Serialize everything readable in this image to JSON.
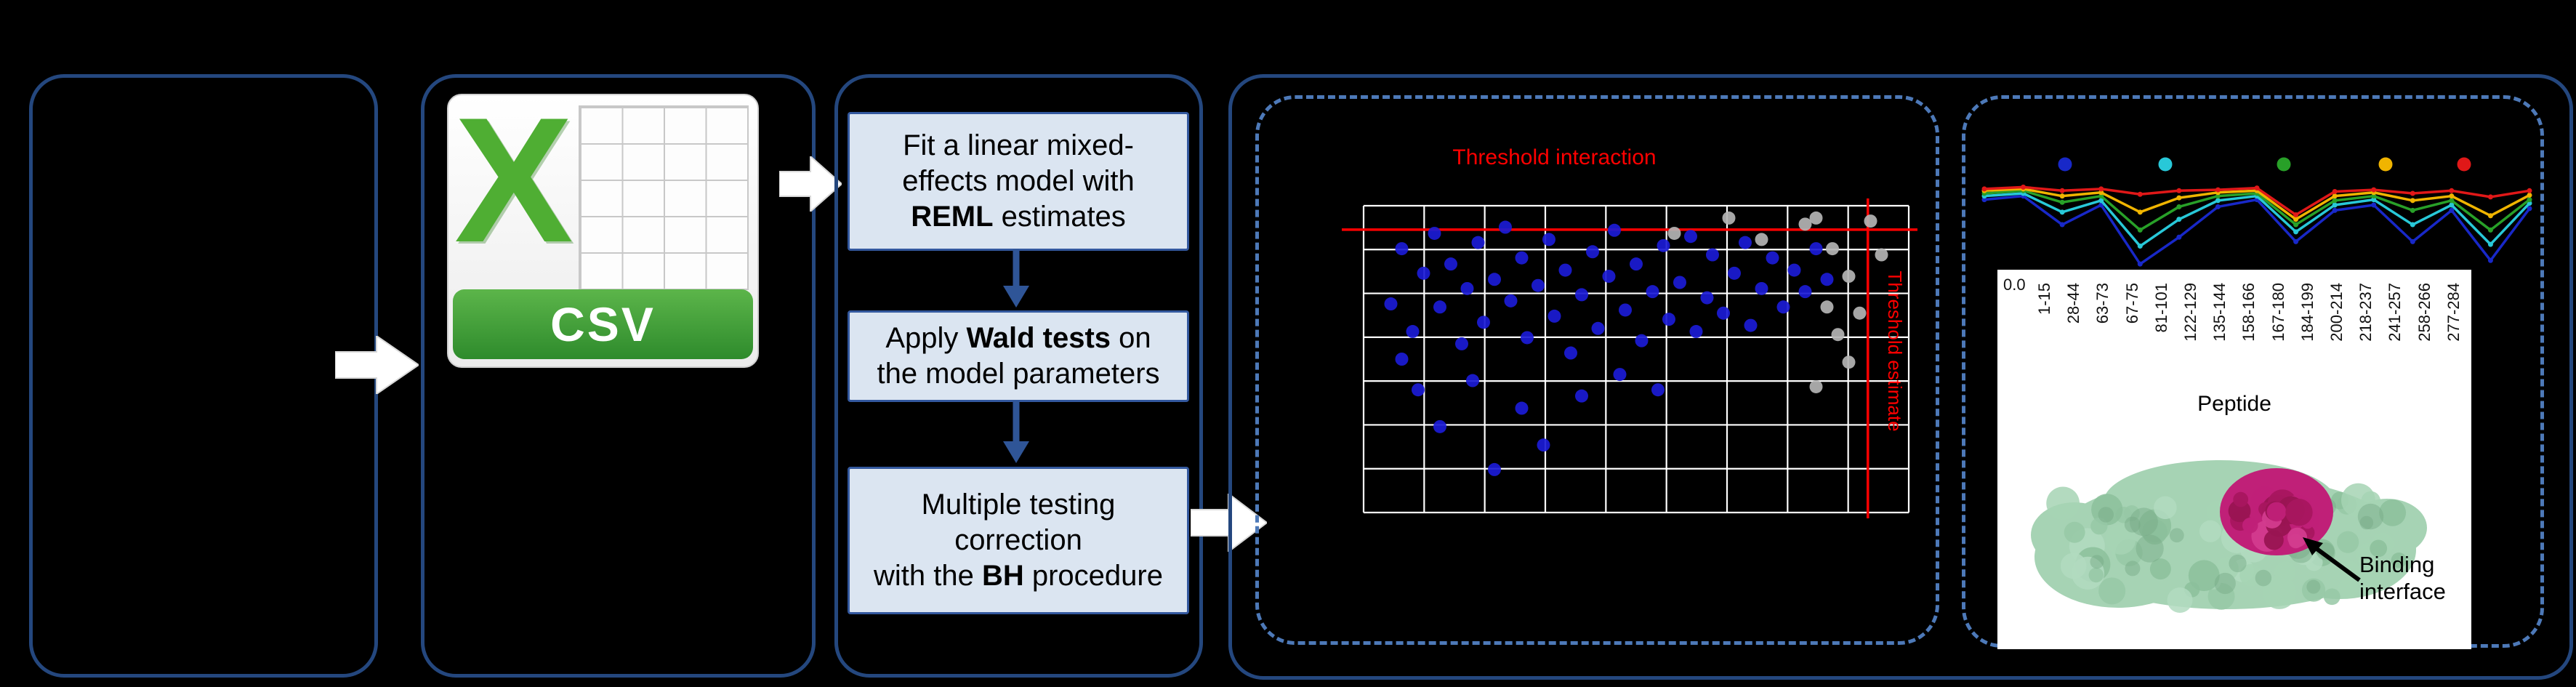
{
  "diagram": {
    "csv_icon": {
      "letter": "X",
      "banner_label": "CSV"
    },
    "method_steps": [
      {
        "lines": [
          [
            {
              "t": "Fit a linear mixed-"
            }
          ],
          [
            {
              "t": "effects model with"
            }
          ],
          [
            {
              "t": "REML",
              "b": true
            },
            {
              "t": " estimates"
            }
          ]
        ]
      },
      {
        "lines": [
          [
            {
              "t": "Apply "
            },
            {
              "t": "Wald tests",
              "b": true
            },
            {
              "t": " on"
            }
          ],
          [
            {
              "t": "the model parameters"
            }
          ]
        ]
      },
      {
        "lines": [
          [
            {
              "t": "Multiple testing"
            }
          ],
          [
            {
              "t": "correction"
            }
          ],
          [
            {
              "t": "with the "
            },
            {
              "t": "BH",
              "b": true
            },
            {
              "t": " procedure"
            }
          ]
        ]
      }
    ],
    "protein_caption": [
      "Binding",
      "interface"
    ],
    "colors": {
      "section_border": "#24477e",
      "dashed_border": "#4d79b8",
      "step_fill": "#dbe5f1",
      "step_border": "#33589e",
      "arrow_fill": "#ffffff",
      "down_arrow": "#2f5597",
      "csv_green": "#4fae33"
    }
  },
  "chart_data": [
    {
      "type": "scatter",
      "title": "Threshold interaction",
      "side_label": "Threshold estimate",
      "accent": "#ff0000",
      "grid_color": "#ffffff",
      "grid_cols": 9,
      "grid_rows": 7,
      "threshold_h": 0.078,
      "threshold_v": 0.925,
      "series": [
        {
          "name": "blue",
          "color": "#1b1bd6",
          "points": [
            [
              0.05,
              0.32
            ],
            [
              0.07,
              0.14
            ],
            [
              0.09,
              0.41
            ],
            [
              0.11,
              0.22
            ],
            [
              0.13,
              0.09
            ],
            [
              0.14,
              0.33
            ],
            [
              0.16,
              0.19
            ],
            [
              0.18,
              0.45
            ],
            [
              0.19,
              0.27
            ],
            [
              0.21,
              0.12
            ],
            [
              0.22,
              0.38
            ],
            [
              0.24,
              0.24
            ],
            [
              0.26,
              0.07
            ],
            [
              0.27,
              0.31
            ],
            [
              0.29,
              0.17
            ],
            [
              0.3,
              0.43
            ],
            [
              0.32,
              0.26
            ],
            [
              0.34,
              0.11
            ],
            [
              0.35,
              0.36
            ],
            [
              0.37,
              0.21
            ],
            [
              0.38,
              0.48
            ],
            [
              0.4,
              0.29
            ],
            [
              0.42,
              0.15
            ],
            [
              0.43,
              0.4
            ],
            [
              0.45,
              0.23
            ],
            [
              0.46,
              0.08
            ],
            [
              0.48,
              0.34
            ],
            [
              0.5,
              0.19
            ],
            [
              0.51,
              0.44
            ],
            [
              0.53,
              0.28
            ],
            [
              0.55,
              0.13
            ],
            [
              0.56,
              0.37
            ],
            [
              0.58,
              0.25
            ],
            [
              0.6,
              0.1
            ],
            [
              0.61,
              0.41
            ],
            [
              0.63,
              0.3
            ],
            [
              0.64,
              0.16
            ],
            [
              0.66,
              0.35
            ],
            [
              0.68,
              0.22
            ],
            [
              0.7,
              0.12
            ],
            [
              0.71,
              0.39
            ],
            [
              0.73,
              0.27
            ],
            [
              0.75,
              0.17
            ],
            [
              0.77,
              0.33
            ],
            [
              0.79,
              0.21
            ],
            [
              0.81,
              0.28
            ],
            [
              0.83,
              0.14
            ],
            [
              0.85,
              0.24
            ],
            [
              0.1,
              0.6
            ],
            [
              0.14,
              0.72
            ],
            [
              0.2,
              0.57
            ],
            [
              0.24,
              0.86
            ],
            [
              0.29,
              0.66
            ],
            [
              0.33,
              0.78
            ],
            [
              0.4,
              0.62
            ],
            [
              0.47,
              0.55
            ],
            [
              0.54,
              0.6
            ],
            [
              0.07,
              0.5
            ]
          ]
        },
        {
          "name": "gray",
          "color": "#b4b4b4",
          "points": [
            [
              0.83,
              0.04
            ],
            [
              0.86,
              0.14
            ],
            [
              0.89,
              0.23
            ],
            [
              0.85,
              0.33
            ],
            [
              0.87,
              0.42
            ],
            [
              0.89,
              0.51
            ],
            [
              0.83,
              0.59
            ],
            [
              0.81,
              0.06
            ],
            [
              0.73,
              0.11
            ],
            [
              0.67,
              0.04
            ],
            [
              0.93,
              0.05
            ],
            [
              0.95,
              0.16
            ],
            [
              0.91,
              0.35
            ],
            [
              0.57,
              0.09
            ]
          ]
        }
      ]
    },
    {
      "type": "line",
      "categories": [
        "1-15",
        "28-44",
        "63-73",
        "67-75",
        "81-101",
        "122-129",
        "135-144",
        "158-166",
        "167-180",
        "184-199",
        "200-214",
        "218-237",
        "241-257",
        "258-266",
        "277-284"
      ],
      "xlabel": "Peptide",
      "y_tick": "0.0",
      "ylim": [
        0,
        1
      ],
      "series": [
        {
          "name": "blue",
          "color": "#1828c8",
          "values": [
            0.8,
            0.84,
            0.52,
            0.74,
            0.08,
            0.38,
            0.72,
            0.8,
            0.33,
            0.68,
            0.74,
            0.33,
            0.68,
            0.12,
            0.7
          ]
        },
        {
          "name": "cyan",
          "color": "#28c8d8",
          "values": [
            0.84,
            0.87,
            0.66,
            0.79,
            0.28,
            0.58,
            0.79,
            0.84,
            0.44,
            0.74,
            0.8,
            0.52,
            0.74,
            0.3,
            0.76
          ]
        },
        {
          "name": "green",
          "color": "#28a028",
          "values": [
            0.87,
            0.9,
            0.77,
            0.84,
            0.46,
            0.72,
            0.84,
            0.87,
            0.52,
            0.79,
            0.84,
            0.68,
            0.79,
            0.46,
            0.8
          ]
        },
        {
          "name": "yellow",
          "color": "#f0b400",
          "values": [
            0.9,
            0.92,
            0.84,
            0.88,
            0.66,
            0.82,
            0.88,
            0.9,
            0.58,
            0.84,
            0.88,
            0.79,
            0.84,
            0.62,
            0.85
          ]
        },
        {
          "name": "red",
          "color": "#e01818",
          "values": [
            0.92,
            0.94,
            0.9,
            0.92,
            0.86,
            0.9,
            0.91,
            0.93,
            0.63,
            0.89,
            0.91,
            0.87,
            0.9,
            0.83,
            0.9
          ]
        }
      ]
    }
  ],
  "protein": {
    "surface_color": "#a6d3b4",
    "peptide_color": "#c02078"
  }
}
